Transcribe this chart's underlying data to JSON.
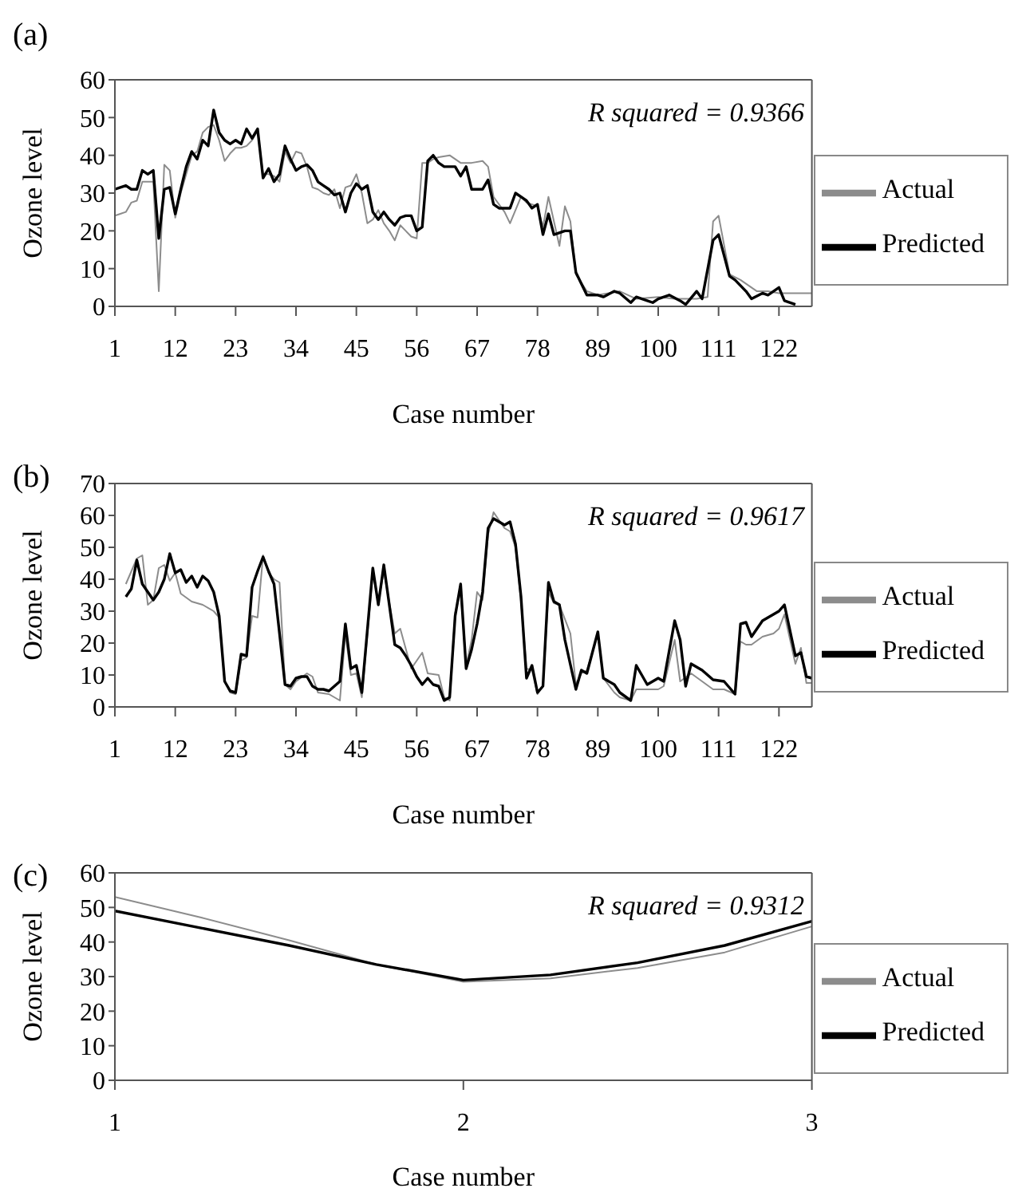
{
  "chart_data": [
    {
      "type": "line",
      "title": "(a)",
      "xlabel": "Case number",
      "ylabel": "Ozone level",
      "xlim": [
        1,
        128
      ],
      "xticks": [
        1,
        12,
        23,
        34,
        45,
        56,
        67,
        78,
        89,
        100,
        111,
        122
      ],
      "ylim": [
        0,
        60
      ],
      "yticks": [
        0,
        10,
        20,
        30,
        40,
        50,
        60
      ],
      "grid": false,
      "marker": "none",
      "legend": "right",
      "annotations": [
        "R squared = 0.9366"
      ],
      "series": [
        {
          "name": "Actual",
          "color": "#8c8c8c",
          "x": [
            1,
            2,
            3,
            4,
            5,
            6,
            7,
            8,
            9,
            10,
            11,
            12,
            13,
            14,
            15,
            16,
            17,
            18,
            19,
            20,
            21,
            22,
            23,
            24,
            25,
            26,
            27,
            28,
            29,
            30,
            31,
            32,
            33,
            34,
            35,
            36,
            37,
            38,
            39,
            40,
            41,
            42,
            43,
            44,
            45,
            46,
            47,
            48,
            49,
            50,
            51,
            52,
            53,
            54,
            55,
            56,
            57,
            58,
            59,
            60,
            62,
            64,
            66,
            68,
            69,
            70,
            72,
            73,
            75,
            76,
            78,
            79,
            80,
            82,
            83,
            84,
            85,
            87,
            89,
            93,
            96,
            100,
            103,
            107,
            109,
            110,
            111,
            113,
            115,
            118,
            120,
            122,
            128
          ],
          "values": [
            24,
            24.5,
            25,
            27.5,
            28,
            33,
            33,
            33,
            4,
            37.5,
            36,
            23.5,
            30,
            35,
            40,
            41,
            46,
            47.5,
            48,
            44,
            38.5,
            40.5,
            42,
            42,
            42.5,
            44,
            46.5,
            35,
            35,
            34.5,
            33,
            41,
            38,
            41,
            40.5,
            37,
            31.5,
            31,
            30,
            29.5,
            31,
            26,
            31.5,
            32,
            35,
            30,
            22,
            23,
            25.5,
            22,
            20,
            17.5,
            21.5,
            20,
            18.5,
            18,
            38,
            38,
            39,
            39.5,
            40,
            38,
            38,
            38.5,
            37,
            29,
            25,
            22,
            29,
            27.5,
            26.5,
            21,
            29,
            16,
            26.5,
            22.5,
            8.5,
            4,
            3,
            4,
            2,
            2.5,
            2,
            2,
            2.5,
            22.5,
            24,
            8.5,
            7,
            4,
            4,
            3.5,
            3.5
          ]
        },
        {
          "name": "Predicted",
          "color": "#000000",
          "x": [
            1,
            2,
            3,
            4,
            5,
            6,
            7,
            8,
            9,
            10,
            11,
            12,
            13,
            14,
            15,
            16,
            17,
            18,
            19,
            20,
            21,
            22,
            23,
            24,
            25,
            26,
            27,
            28,
            29,
            30,
            31,
            32,
            33,
            34,
            35,
            36,
            37,
            38,
            39,
            40,
            41,
            42,
            43,
            44,
            45,
            46,
            47,
            48,
            49,
            50,
            51,
            52,
            53,
            54,
            55,
            56,
            57,
            58,
            59,
            60,
            61,
            62,
            63,
            64,
            65,
            66,
            68,
            69,
            70,
            71,
            73,
            74,
            76,
            77,
            78,
            79,
            80,
            81,
            83,
            84,
            85,
            87,
            89,
            90,
            92,
            93,
            95,
            96,
            98,
            99,
            100,
            102,
            104,
            105,
            107,
            108,
            110,
            111,
            113,
            114,
            116,
            117,
            119,
            120,
            122,
            123,
            125
          ],
          "values": [
            31,
            31.5,
            32,
            31,
            31,
            36,
            35,
            36,
            18,
            31,
            31.5,
            24.5,
            31,
            37,
            41,
            39,
            44,
            42.5,
            52,
            46,
            44,
            43,
            44,
            43,
            47,
            44.5,
            47,
            34,
            36.5,
            33,
            35,
            42.5,
            39,
            36,
            37,
            37.5,
            36,
            33,
            32,
            31,
            29.5,
            30,
            25,
            30,
            32.5,
            31,
            32,
            25,
            23,
            25,
            23,
            21.5,
            23.5,
            24,
            24,
            20,
            21,
            38.5,
            40,
            38,
            37,
            37,
            37,
            34.5,
            37,
            31,
            31,
            33.5,
            27,
            26,
            26,
            30,
            28,
            26,
            27,
            19,
            24.5,
            19,
            20,
            20,
            9,
            3,
            3,
            2.5,
            4,
            3.5,
            1,
            2.5,
            1.5,
            1,
            2,
            3,
            1.5,
            0.5,
            4,
            2,
            17.5,
            19,
            8,
            7,
            4,
            2,
            3.5,
            3,
            5,
            1.5,
            0.5
          ]
        }
      ]
    },
    {
      "type": "line",
      "title": "(b)",
      "xlabel": "Case number",
      "ylabel": "Ozone level",
      "xlim": [
        1,
        128
      ],
      "xticks": [
        1,
        12,
        23,
        34,
        45,
        56,
        67,
        78,
        89,
        100,
        111,
        122
      ],
      "ylim": [
        0,
        70
      ],
      "yticks": [
        0,
        10,
        20,
        30,
        40,
        50,
        60,
        70
      ],
      "grid": false,
      "marker": "none",
      "legend": "right",
      "annotations": [
        "R squared = 0.9617"
      ],
      "series": [
        {
          "name": "Actual",
          "color": "#8c8c8c",
          "x": [
            3,
            4,
            5,
            6,
            7,
            8,
            9,
            10,
            11,
            12,
            13,
            15,
            17,
            19,
            20,
            21,
            22,
            23,
            24,
            25,
            26,
            27,
            28,
            29,
            30,
            31,
            32,
            33,
            34,
            36,
            37,
            38,
            40,
            42,
            43,
            44,
            45,
            46,
            48,
            49,
            50,
            52,
            53,
            55,
            57,
            58,
            60,
            61,
            62,
            63,
            64,
            65,
            66,
            67,
            68,
            69,
            70,
            72,
            73,
            74,
            75,
            76,
            77,
            78,
            79,
            80,
            81,
            82,
            84,
            85,
            86,
            87,
            89,
            90,
            92,
            93,
            95,
            96,
            100,
            101,
            103,
            104,
            106,
            108,
            110,
            112,
            114,
            115,
            116,
            117,
            119,
            121,
            122,
            123,
            125,
            126,
            127,
            128
          ],
          "values": [
            38.5,
            42.5,
            46.5,
            47.5,
            32,
            33.5,
            43.5,
            44.5,
            39.5,
            42,
            35.5,
            33,
            32,
            30,
            28,
            8,
            4.5,
            4,
            14.5,
            15.5,
            28.5,
            28,
            47.5,
            42,
            40,
            39,
            7,
            5.5,
            8,
            10.5,
            9.5,
            4.5,
            4,
            2,
            23,
            10,
            10.5,
            3,
            42,
            33,
            42.5,
            23,
            24.5,
            12,
            17,
            10.5,
            10,
            3,
            2,
            29.5,
            36,
            13,
            21,
            36,
            33.5,
            54,
            61,
            56,
            55,
            50,
            33,
            12,
            11.5,
            4,
            6.5,
            36,
            32.5,
            32,
            23,
            7,
            10.5,
            11.5,
            23,
            9,
            4.5,
            3,
            2,
            5.5,
            5.5,
            6.5,
            21,
            8,
            10.5,
            8,
            5.5,
            5.5,
            4,
            20.5,
            19.5,
            19.5,
            22,
            23,
            24.5,
            29,
            13.5,
            18.5,
            7.5,
            7.5
          ]
        },
        {
          "name": "Predicted",
          "color": "#000000",
          "x": [
            3,
            4,
            5,
            6,
            8,
            9,
            10,
            11,
            12,
            13,
            14,
            15,
            16,
            17,
            18,
            19,
            20,
            21,
            22,
            23,
            24,
            25,
            26,
            27,
            28,
            29,
            30,
            31,
            32,
            33,
            34,
            35,
            36,
            37,
            38,
            39,
            40,
            41,
            42,
            43,
            44,
            45,
            46,
            48,
            49,
            50,
            52,
            53,
            54,
            55,
            56,
            57,
            58,
            59,
            60,
            61,
            62,
            63,
            64,
            65,
            66,
            67,
            68,
            69,
            70,
            72,
            73,
            74,
            75,
            76,
            77,
            78,
            79,
            80,
            81,
            82,
            83,
            85,
            86,
            87,
            89,
            90,
            92,
            93,
            95,
            96,
            98,
            100,
            101,
            103,
            104,
            105,
            106,
            108,
            110,
            112,
            114,
            115,
            116,
            117,
            119,
            120,
            122,
            123,
            125,
            126,
            127,
            128
          ],
          "values": [
            34.5,
            37,
            46,
            38.5,
            33.5,
            36,
            40,
            48,
            42,
            43,
            39,
            41,
            37.5,
            41,
            39.5,
            36,
            28.5,
            8,
            5,
            4.5,
            16.5,
            16,
            37.5,
            42.5,
            47,
            42.5,
            38.5,
            23,
            7,
            6.5,
            9,
            9.5,
            9.5,
            6.5,
            5.5,
            5.5,
            5,
            6.5,
            8,
            26,
            12,
            13,
            4.5,
            43.5,
            32,
            44.5,
            19.5,
            18.5,
            16,
            13,
            9.5,
            7,
            9,
            7,
            6.5,
            2,
            3,
            28.5,
            38.5,
            12,
            18,
            26,
            36,
            56,
            59,
            57,
            58,
            51,
            34.5,
            9,
            13,
            4.5,
            6.5,
            39,
            33,
            32,
            21,
            5.5,
            11.5,
            10.5,
            23.5,
            9,
            7,
            4.5,
            2,
            13,
            7,
            9,
            8,
            27,
            21,
            6.5,
            13.5,
            11.5,
            8.5,
            8,
            4,
            26,
            26.5,
            22,
            27,
            28,
            30,
            32,
            16,
            17,
            9.5,
            9
          ]
        }
      ]
    },
    {
      "type": "line",
      "title": "(c)",
      "xlabel": "Case number",
      "ylabel": "Ozone level",
      "xlim": [
        1,
        3
      ],
      "xticks": [
        1,
        2,
        3
      ],
      "ylim": [
        0,
        60
      ],
      "yticks": [
        0,
        10,
        20,
        30,
        40,
        50,
        60
      ],
      "grid": false,
      "marker": "none",
      "legend": "right",
      "annotations": [
        "R squared = 0.9312"
      ],
      "series": [
        {
          "name": "Actual",
          "color": "#8c8c8c",
          "x": [
            1,
            1.25,
            1.5,
            1.75,
            2,
            2.25,
            2.5,
            2.75,
            3
          ],
          "values": [
            53,
            47,
            40.5,
            33.5,
            28.5,
            29.5,
            32.5,
            37,
            44.5
          ]
        },
        {
          "name": "Predicted",
          "color": "#000000",
          "x": [
            1,
            1.25,
            1.5,
            1.75,
            2,
            2.25,
            2.5,
            2.75,
            3
          ],
          "values": [
            49,
            44,
            39,
            33.5,
            29,
            30.5,
            34,
            39,
            46
          ]
        }
      ]
    }
  ]
}
